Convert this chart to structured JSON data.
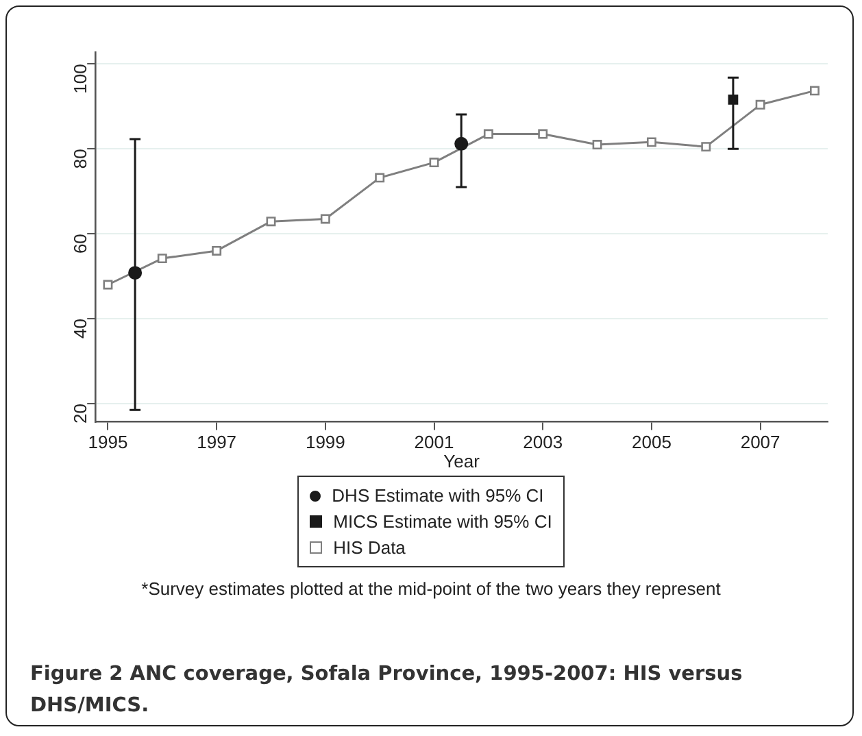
{
  "chart_data": {
    "type": "line",
    "title": "Figure 2 ANC coverage, Sofala Province, 1995-2007: HIS versus DHS/MICS.",
    "xlabel": "Year",
    "xlim": [
      1994.77,
      2008.24
    ],
    "xticks": [
      1995,
      1997,
      1999,
      2001,
      2003,
      2005,
      2007
    ],
    "ylim": [
      15.7,
      102.8
    ],
    "yticks": [
      20,
      40,
      60,
      80,
      100
    ],
    "grid": "y",
    "legend": "bottom",
    "annotations": [
      "*Survey estimates plotted at the mid-point of the two years they represent"
    ],
    "series": [
      {
        "name": "DHS Estimate with 95% CI",
        "type": "scatter",
        "marker": "circle",
        "color": "#1a1a1a",
        "x": [
          1995.5,
          2001.5
        ],
        "values": [
          50.8,
          81.2
        ],
        "errors": [
          [
            18.5,
            82.3
          ],
          [
            71,
            88.1
          ]
        ]
      },
      {
        "name": "MICS Estimate with 95% CI",
        "type": "scatter",
        "marker": "square",
        "color": "#1a1a1a",
        "x": [
          2006.5
        ],
        "values": [
          91.6
        ],
        "errors": [
          [
            80,
            96.8
          ]
        ]
      },
      {
        "name": "HIS Data",
        "type": "line",
        "marker": "square",
        "color": "#7f7f7f",
        "x": [
          1995,
          1996,
          1997,
          1998,
          1999,
          2000,
          2001,
          2002,
          2003,
          2004,
          2005,
          2006,
          2007,
          2008
        ],
        "values": [
          48.0,
          54.2,
          56.0,
          62.9,
          63.5,
          73.2,
          76.8,
          83.5,
          83.5,
          81.0,
          81.6,
          80.5,
          90.4,
          93.7
        ]
      }
    ]
  }
}
